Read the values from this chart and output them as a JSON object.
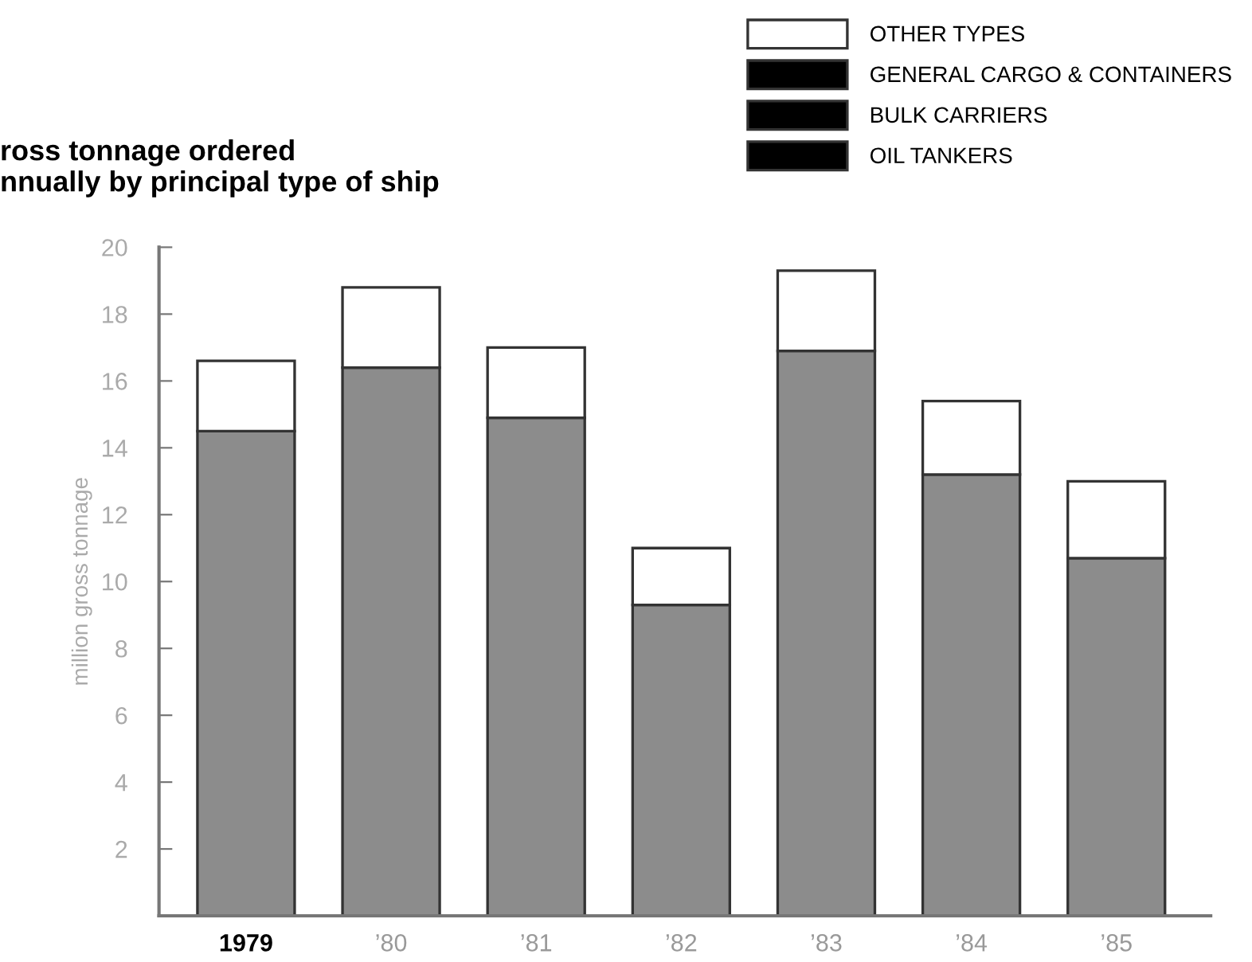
{
  "chart_data": {
    "type": "bar",
    "stacked": true,
    "title": "ross tonnage ordered\nnnually by principal type of ship",
    "ylabel": "million gross tonnage",
    "categories": [
      "1979",
      "’80",
      "’81",
      "’82",
      "’83",
      "’84",
      "’85"
    ],
    "series": [
      {
        "color": "#8c8c8c",
        "values": [
          14.5,
          16.4,
          14.9,
          9.3,
          16.9,
          13.2,
          10.7
        ]
      },
      {
        "name": "OTHER TYPES",
        "color": "#ffffff",
        "values": [
          2.1,
          2.4,
          2.1,
          1.7,
          2.4,
          2.2,
          2.3
        ]
      },
      {
        "name": "GENERAL CARGO & CONTAINERS",
        "color": "#000000",
        "values": [
          null,
          null,
          null,
          null,
          null,
          null,
          null
        ]
      },
      {
        "name": "BULK CARRIERS",
        "color": "#000000",
        "values": [
          null,
          null,
          null,
          null,
          null,
          null,
          null
        ]
      },
      {
        "name": "OIL TANKERS",
        "color": "#000000",
        "values": [
          null,
          null,
          null,
          null,
          null,
          null,
          null
        ]
      }
    ],
    "ylim": [
      0,
      20
    ],
    "yticks": [
      {
        "value": 0,
        "label": null
      },
      2,
      4,
      6,
      8,
      10,
      12,
      14,
      16,
      18,
      20
    ],
    "grid": false,
    "legend": "top right"
  }
}
